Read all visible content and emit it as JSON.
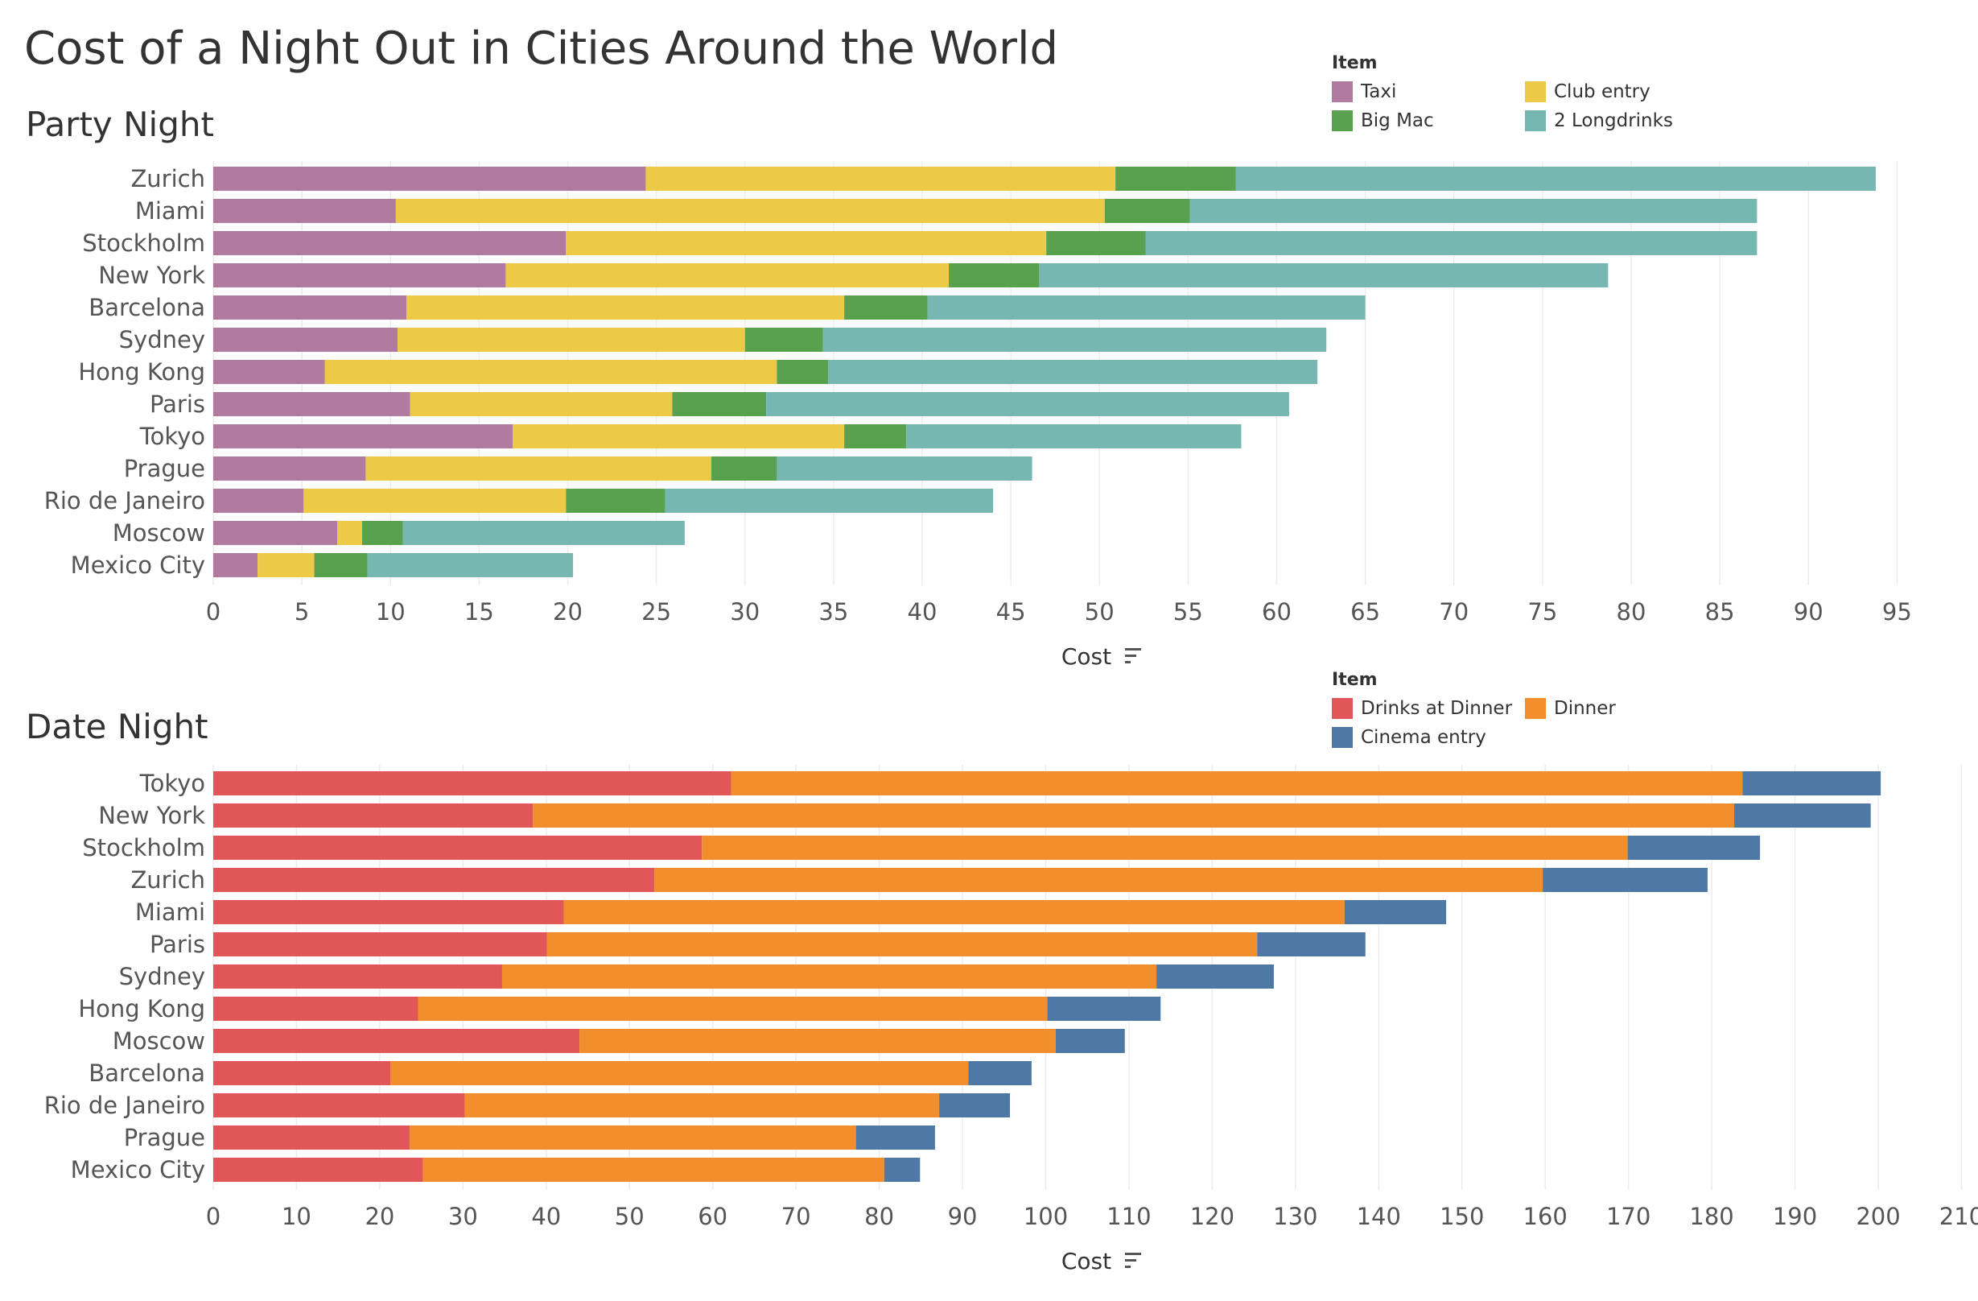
{
  "title": "Cost of a Night Out in Cities Around the World",
  "chart_data": [
    {
      "type": "bar",
      "orientation": "horizontal",
      "stacked": true,
      "title": "Party Night",
      "xlabel": "Cost",
      "xlim": [
        0,
        97
      ],
      "x_ticks": [
        0,
        5,
        10,
        15,
        20,
        25,
        30,
        35,
        40,
        45,
        50,
        55,
        60,
        65,
        70,
        75,
        80,
        85,
        90,
        95
      ],
      "grid": "vertical",
      "legend_title": "Item",
      "legend_position": "top-right",
      "categories": [
        "Zurich",
        "Miami",
        "Stockholm",
        "New York",
        "Barcelona",
        "Sydney",
        "Hong Kong",
        "Paris",
        "Tokyo",
        "Prague",
        "Rio de Janeiro",
        "Moscow",
        "Mexico City"
      ],
      "series": [
        {
          "name": "Taxi",
          "color": "#b07aa1",
          "values": [
            24.4,
            10.3,
            19.9,
            16.5,
            10.9,
            10.4,
            6.3,
            11.1,
            16.9,
            8.6,
            5.1,
            7.0,
            2.5
          ]
        },
        {
          "name": "Club entry",
          "color": "#edc948",
          "values": [
            26.5,
            40.0,
            27.1,
            25.0,
            24.7,
            19.6,
            25.5,
            14.8,
            18.7,
            19.5,
            14.8,
            1.4,
            3.2
          ]
        },
        {
          "name": "Big Mac",
          "color": "#59a14f",
          "values": [
            6.8,
            4.8,
            5.6,
            5.1,
            4.7,
            4.4,
            2.9,
            5.3,
            3.5,
            3.7,
            5.6,
            2.3,
            3.0
          ]
        },
        {
          "name": "2 Longdrinks",
          "color": "#76b7b2",
          "values": [
            36.1,
            32.0,
            34.5,
            32.1,
            24.7,
            28.4,
            27.6,
            29.5,
            18.9,
            14.4,
            18.5,
            15.9,
            11.6
          ]
        }
      ]
    },
    {
      "type": "bar",
      "orientation": "horizontal",
      "stacked": true,
      "title": "Date Night",
      "xlabel": "Cost",
      "xlim": [
        0,
        213
      ],
      "x_ticks": [
        0,
        10,
        20,
        30,
        40,
        50,
        60,
        70,
        80,
        90,
        100,
        110,
        120,
        130,
        140,
        150,
        160,
        170,
        180,
        190,
        200,
        210
      ],
      "grid": "vertical",
      "legend_title": "Item",
      "legend_position": "top-right",
      "categories": [
        "Tokyo",
        "New York",
        "Stockholm",
        "Zurich",
        "Miami",
        "Paris",
        "Sydney",
        "Hong Kong",
        "Moscow",
        "Barcelona",
        "Rio de Janeiro",
        "Prague",
        "Mexico City"
      ],
      "series": [
        {
          "name": "Drinks at Dinner",
          "color": "#e15759",
          "values": [
            62.2,
            38.4,
            58.7,
            53.0,
            42.1,
            40.1,
            34.7,
            24.6,
            44.0,
            21.3,
            30.2,
            23.6,
            25.2
          ]
        },
        {
          "name": "Dinner",
          "color": "#f28e2b",
          "values": [
            121.5,
            144.3,
            111.2,
            106.7,
            93.8,
            85.3,
            78.6,
            75.6,
            57.2,
            69.4,
            57.0,
            53.6,
            55.4
          ]
        },
        {
          "name": "Cinema entry",
          "color": "#4e79a7",
          "values": [
            16.6,
            16.4,
            15.9,
            19.8,
            12.2,
            13.0,
            14.1,
            13.6,
            8.3,
            7.6,
            8.5,
            9.5,
            4.3
          ]
        }
      ]
    }
  ]
}
